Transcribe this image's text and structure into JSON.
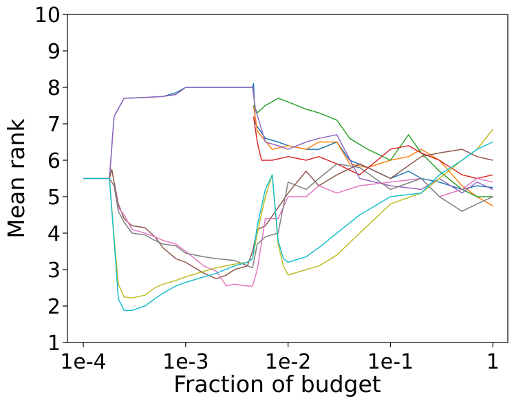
{
  "chart_data": {
    "type": "line",
    "title": "",
    "xlabel": "Fraction of budget",
    "ylabel": "Mean rank",
    "x_scale": "log",
    "xlim": [
      7e-05,
      1.4
    ],
    "ylim": [
      1,
      10
    ],
    "xticks": [
      {
        "value": 0.0001,
        "label": "1e-4"
      },
      {
        "value": 0.001,
        "label": "1e-3"
      },
      {
        "value": 0.01,
        "label": "1e-2"
      },
      {
        "value": 0.1,
        "label": "1e-1"
      },
      {
        "value": 1,
        "label": "1"
      }
    ],
    "yticks": [
      {
        "value": 1,
        "label": "1"
      },
      {
        "value": 2,
        "label": "2"
      },
      {
        "value": 3,
        "label": "3"
      },
      {
        "value": 4,
        "label": "4"
      },
      {
        "value": 5,
        "label": "5"
      },
      {
        "value": 6,
        "label": "6"
      },
      {
        "value": 7,
        "label": "7"
      },
      {
        "value": 8,
        "label": "8"
      },
      {
        "value": 9,
        "label": "9"
      },
      {
        "value": 10,
        "label": "10"
      }
    ],
    "grid": false,
    "legend": "none",
    "series": [
      {
        "color": "#1f77b4",
        "points": [
          [
            0.0001,
            5.5
          ],
          [
            0.00018,
            5.5
          ],
          [
            0.0002,
            7.2
          ],
          [
            0.00025,
            7.7
          ],
          [
            0.0004,
            7.72
          ],
          [
            0.0006,
            7.75
          ],
          [
            0.0008,
            7.85
          ],
          [
            0.001,
            8.0
          ],
          [
            0.002,
            8.0
          ],
          [
            0.003,
            8.0
          ],
          [
            0.0045,
            8.0
          ],
          [
            0.0046,
            8.1
          ],
          [
            0.0048,
            7.0
          ],
          [
            0.006,
            6.6
          ],
          [
            0.008,
            6.5
          ],
          [
            0.01,
            6.4
          ],
          [
            0.015,
            6.3
          ],
          [
            0.02,
            6.3
          ],
          [
            0.03,
            6.5
          ],
          [
            0.04,
            6.0
          ],
          [
            0.06,
            5.8
          ],
          [
            0.1,
            5.5
          ],
          [
            0.15,
            5.7
          ],
          [
            0.2,
            5.5
          ],
          [
            0.3,
            5.4
          ],
          [
            0.5,
            5.2
          ],
          [
            0.7,
            5.3
          ],
          [
            1,
            5.25
          ]
        ]
      },
      {
        "color": "#ff7f0e",
        "points": [
          [
            0.0046,
            7.5
          ],
          [
            0.005,
            6.8
          ],
          [
            0.007,
            6.3
          ],
          [
            0.01,
            6.4
          ],
          [
            0.015,
            6.3
          ],
          [
            0.02,
            6.5
          ],
          [
            0.03,
            6.5
          ],
          [
            0.04,
            5.9
          ],
          [
            0.06,
            5.8
          ],
          [
            0.1,
            6.0
          ],
          [
            0.15,
            6.1
          ],
          [
            0.2,
            6.3
          ],
          [
            0.3,
            6.0
          ],
          [
            0.5,
            5.3
          ],
          [
            0.7,
            5.0
          ],
          [
            1,
            4.75
          ]
        ]
      },
      {
        "color": "#2ca02c",
        "points": [
          [
            0.0046,
            7.5
          ],
          [
            0.005,
            7.3
          ],
          [
            0.006,
            7.5
          ],
          [
            0.008,
            7.7
          ],
          [
            0.01,
            7.6
          ],
          [
            0.015,
            7.4
          ],
          [
            0.02,
            7.3
          ],
          [
            0.03,
            7.1
          ],
          [
            0.04,
            6.6
          ],
          [
            0.06,
            6.3
          ],
          [
            0.1,
            6.0
          ],
          [
            0.15,
            6.7
          ],
          [
            0.2,
            6.2
          ],
          [
            0.3,
            5.7
          ],
          [
            0.5,
            5.2
          ],
          [
            0.7,
            5.0
          ],
          [
            1,
            5.0
          ]
        ]
      },
      {
        "color": "#d62728",
        "points": [
          [
            0.0046,
            7.2
          ],
          [
            0.005,
            6.5
          ],
          [
            0.0055,
            6.0
          ],
          [
            0.007,
            6.0
          ],
          [
            0.01,
            6.1
          ],
          [
            0.015,
            6.0
          ],
          [
            0.02,
            6.1
          ],
          [
            0.03,
            5.9
          ],
          [
            0.05,
            5.6
          ],
          [
            0.1,
            6.3
          ],
          [
            0.15,
            6.4
          ],
          [
            0.2,
            6.2
          ],
          [
            0.3,
            6.0
          ],
          [
            0.5,
            5.6
          ],
          [
            0.7,
            5.5
          ],
          [
            1,
            5.6
          ]
        ]
      },
      {
        "color": "#9467bd",
        "points": [
          [
            0.0001,
            5.5
          ],
          [
            0.00018,
            5.5
          ],
          [
            0.0002,
            7.2
          ],
          [
            0.00025,
            7.7
          ],
          [
            0.0004,
            7.72
          ],
          [
            0.0006,
            7.75
          ],
          [
            0.0008,
            7.8
          ],
          [
            0.001,
            8.0
          ],
          [
            0.002,
            8.0
          ],
          [
            0.003,
            8.0
          ],
          [
            0.0045,
            8.0
          ],
          [
            0.0048,
            7.4
          ],
          [
            0.006,
            6.5
          ],
          [
            0.008,
            6.4
          ],
          [
            0.01,
            6.3
          ],
          [
            0.015,
            6.5
          ],
          [
            0.02,
            6.6
          ],
          [
            0.03,
            6.7
          ],
          [
            0.05,
            5.5
          ],
          [
            0.1,
            5.3
          ],
          [
            0.2,
            5.2
          ],
          [
            0.3,
            5.5
          ],
          [
            0.5,
            5.1
          ],
          [
            0.7,
            5.4
          ],
          [
            1,
            5.2
          ]
        ]
      },
      {
        "color": "#8c564b",
        "points": [
          [
            0.0001,
            5.5
          ],
          [
            0.00018,
            5.5
          ],
          [
            0.00019,
            5.75
          ],
          [
            0.0002,
            5.4
          ],
          [
            0.00022,
            4.8
          ],
          [
            0.00025,
            4.4
          ],
          [
            0.0003,
            4.2
          ],
          [
            0.0004,
            4.15
          ],
          [
            0.0005,
            3.9
          ],
          [
            0.0006,
            3.6
          ],
          [
            0.0008,
            3.3
          ],
          [
            0.001,
            3.2
          ],
          [
            0.0015,
            2.9
          ],
          [
            0.002,
            2.75
          ],
          [
            0.0025,
            2.85
          ],
          [
            0.003,
            3.0
          ],
          [
            0.004,
            3.1
          ],
          [
            0.0045,
            3.5
          ],
          [
            0.005,
            4.1
          ],
          [
            0.006,
            4.2
          ],
          [
            0.008,
            4.7
          ],
          [
            0.01,
            5.1
          ],
          [
            0.015,
            5.7
          ],
          [
            0.02,
            5.3
          ],
          [
            0.03,
            5.6
          ],
          [
            0.05,
            5.9
          ],
          [
            0.1,
            5.5
          ],
          [
            0.2,
            6.1
          ],
          [
            0.3,
            6.2
          ],
          [
            0.5,
            6.3
          ],
          [
            0.7,
            6.1
          ],
          [
            1,
            6.0
          ]
        ]
      },
      {
        "color": "#e377c2",
        "points": [
          [
            0.0001,
            5.5
          ],
          [
            0.00018,
            5.5
          ],
          [
            0.0002,
            5.3
          ],
          [
            0.00022,
            4.7
          ],
          [
            0.00025,
            4.5
          ],
          [
            0.0003,
            4.1
          ],
          [
            0.0004,
            4.0
          ],
          [
            0.0005,
            3.9
          ],
          [
            0.0006,
            3.8
          ],
          [
            0.0008,
            3.7
          ],
          [
            0.001,
            3.5
          ],
          [
            0.0015,
            3.1
          ],
          [
            0.002,
            2.95
          ],
          [
            0.0025,
            2.55
          ],
          [
            0.003,
            2.6
          ],
          [
            0.004,
            2.55
          ],
          [
            0.0045,
            2.55
          ],
          [
            0.005,
            3.0
          ],
          [
            0.006,
            4.4
          ],
          [
            0.008,
            4.4
          ],
          [
            0.01,
            5.0
          ],
          [
            0.015,
            5.0
          ],
          [
            0.02,
            5.3
          ],
          [
            0.03,
            5.1
          ],
          [
            0.05,
            5.3
          ],
          [
            0.1,
            5.4
          ],
          [
            0.2,
            5.5
          ],
          [
            0.3,
            5.0
          ],
          [
            0.5,
            5.2
          ],
          [
            0.7,
            5.5
          ],
          [
            1,
            5.4
          ]
        ]
      },
      {
        "color": "#7f7f7f",
        "points": [
          [
            0.0001,
            5.5
          ],
          [
            0.00018,
            5.5
          ],
          [
            0.0002,
            5.3
          ],
          [
            0.00022,
            4.6
          ],
          [
            0.00025,
            4.3
          ],
          [
            0.0003,
            4.0
          ],
          [
            0.0004,
            3.95
          ],
          [
            0.0005,
            3.8
          ],
          [
            0.0006,
            3.7
          ],
          [
            0.0008,
            3.65
          ],
          [
            0.001,
            3.45
          ],
          [
            0.0015,
            3.35
          ],
          [
            0.002,
            3.3
          ],
          [
            0.003,
            3.25
          ],
          [
            0.0045,
            3.05
          ],
          [
            0.005,
            3.7
          ],
          [
            0.006,
            3.9
          ],
          [
            0.008,
            4.0
          ],
          [
            0.01,
            5.4
          ],
          [
            0.015,
            5.2
          ],
          [
            0.02,
            5.5
          ],
          [
            0.03,
            5.9
          ],
          [
            0.05,
            5.8
          ],
          [
            0.1,
            5.2
          ],
          [
            0.2,
            5.5
          ],
          [
            0.3,
            5.0
          ],
          [
            0.5,
            4.6
          ],
          [
            0.7,
            4.8
          ],
          [
            1,
            5.0
          ]
        ]
      },
      {
        "color": "#bcbd22",
        "points": [
          [
            0.0001,
            5.5
          ],
          [
            0.00018,
            5.5
          ],
          [
            0.0002,
            3.9
          ],
          [
            0.00022,
            2.6
          ],
          [
            0.00025,
            2.25
          ],
          [
            0.0003,
            2.22
          ],
          [
            0.0004,
            2.3
          ],
          [
            0.0005,
            2.5
          ],
          [
            0.0006,
            2.6
          ],
          [
            0.0008,
            2.7
          ],
          [
            0.001,
            2.8
          ],
          [
            0.0015,
            2.95
          ],
          [
            0.002,
            3.05
          ],
          [
            0.003,
            3.15
          ],
          [
            0.004,
            3.2
          ],
          [
            0.0045,
            3.3
          ],
          [
            0.005,
            4.0
          ],
          [
            0.006,
            5.0
          ],
          [
            0.007,
            5.6
          ],
          [
            0.008,
            3.7
          ],
          [
            0.009,
            3.1
          ],
          [
            0.01,
            2.85
          ],
          [
            0.015,
            3.0
          ],
          [
            0.02,
            3.1
          ],
          [
            0.03,
            3.4
          ],
          [
            0.05,
            4.0
          ],
          [
            0.1,
            4.8
          ],
          [
            0.2,
            5.1
          ],
          [
            0.3,
            5.5
          ],
          [
            0.5,
            6.0
          ],
          [
            0.7,
            6.3
          ],
          [
            1,
            6.85
          ]
        ]
      },
      {
        "color": "#17becf",
        "points": [
          [
            0.0001,
            5.5
          ],
          [
            0.00018,
            5.5
          ],
          [
            0.0002,
            3.8
          ],
          [
            0.00022,
            2.2
          ],
          [
            0.00025,
            1.88
          ],
          [
            0.0003,
            1.88
          ],
          [
            0.0004,
            2.0
          ],
          [
            0.0005,
            2.2
          ],
          [
            0.0006,
            2.35
          ],
          [
            0.0008,
            2.55
          ],
          [
            0.001,
            2.65
          ],
          [
            0.0015,
            2.8
          ],
          [
            0.002,
            2.9
          ],
          [
            0.003,
            3.1
          ],
          [
            0.004,
            3.2
          ],
          [
            0.0045,
            3.3
          ],
          [
            0.005,
            4.2
          ],
          [
            0.006,
            5.2
          ],
          [
            0.007,
            5.6
          ],
          [
            0.008,
            3.8
          ],
          [
            0.009,
            3.3
          ],
          [
            0.01,
            3.2
          ],
          [
            0.015,
            3.35
          ],
          [
            0.02,
            3.6
          ],
          [
            0.03,
            4.0
          ],
          [
            0.05,
            4.5
          ],
          [
            0.1,
            5.0
          ],
          [
            0.2,
            5.1
          ],
          [
            0.3,
            5.6
          ],
          [
            0.5,
            6.0
          ],
          [
            0.7,
            6.3
          ],
          [
            1,
            6.5
          ]
        ]
      }
    ]
  }
}
